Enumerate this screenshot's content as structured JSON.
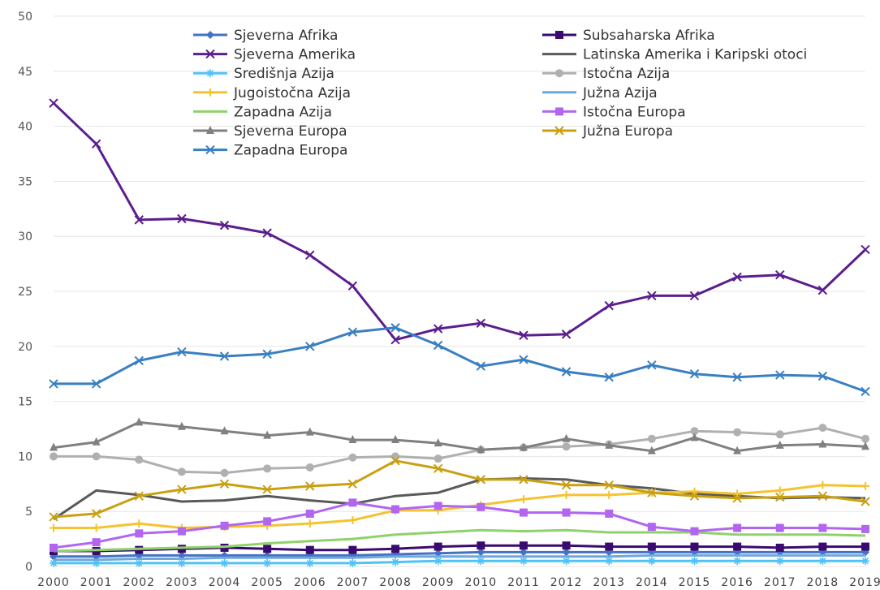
{
  "chart_data": {
    "type": "line",
    "title": "",
    "xlabel": "",
    "ylabel": "",
    "ylim": [
      0,
      50
    ],
    "yticks": [
      "0",
      "5",
      "10",
      "15",
      "20",
      "25",
      "30",
      "35",
      "40",
      "45",
      "50"
    ],
    "x": [
      "2000",
      "2001",
      "2002",
      "2003",
      "2004",
      "2005",
      "2006",
      "2007",
      "2008",
      "2009",
      "2010",
      "2011",
      "2012",
      "2013",
      "2014",
      "2015",
      "2016",
      "2017",
      "2018",
      "2019"
    ],
    "grid": "horizontal",
    "legend_position": "top",
    "series": [
      {
        "name": "Sjeverna Afrika",
        "color": "#4472C4",
        "marker": "diamond",
        "values": [
          0.9,
          0.9,
          1.0,
          1.0,
          1.0,
          1.0,
          1.0,
          1.0,
          1.1,
          1.2,
          1.3,
          1.3,
          1.3,
          1.3,
          1.3,
          1.3,
          1.3,
          1.3,
          1.3,
          1.3
        ]
      },
      {
        "name": "Subsaharska Afrika",
        "color": "#3A0A6E",
        "marker": "square",
        "values": [
          1.4,
          1.4,
          1.5,
          1.6,
          1.7,
          1.6,
          1.5,
          1.5,
          1.6,
          1.8,
          1.9,
          1.9,
          1.9,
          1.8,
          1.8,
          1.8,
          1.8,
          1.7,
          1.8,
          1.8
        ]
      },
      {
        "name": "Sjeverna Amerika",
        "color": "#5B1E8E",
        "marker": "cross",
        "values": [
          42.1,
          38.4,
          31.5,
          31.6,
          31.0,
          30.3,
          28.3,
          25.5,
          20.6,
          21.6,
          22.1,
          21.0,
          21.1,
          23.7,
          24.6,
          24.6,
          26.3,
          26.5,
          25.1,
          28.8
        ]
      },
      {
        "name": "Latinska Amerika i Karipski otoci",
        "color": "#595959",
        "marker": "none",
        "values": [
          4.3,
          6.9,
          6.5,
          5.9,
          6.0,
          6.4,
          6.0,
          5.7,
          6.4,
          6.7,
          7.9,
          8.0,
          7.9,
          7.4,
          7.1,
          6.6,
          6.4,
          6.2,
          6.3,
          6.2
        ]
      },
      {
        "name": "Središnja Azija",
        "color": "#4FC3F7",
        "marker": "star",
        "values": [
          0.3,
          0.3,
          0.3,
          0.3,
          0.3,
          0.3,
          0.3,
          0.3,
          0.4,
          0.5,
          0.5,
          0.5,
          0.5,
          0.5,
          0.5,
          0.5,
          0.5,
          0.5,
          0.5,
          0.5
        ]
      },
      {
        "name": "Istočna Azija",
        "color": "#B0B0B0",
        "marker": "circle",
        "values": [
          10.0,
          10.0,
          9.7,
          8.6,
          8.5,
          8.9,
          9.0,
          9.9,
          10.0,
          9.8,
          10.6,
          10.8,
          10.9,
          11.1,
          11.6,
          12.3,
          12.2,
          12.0,
          12.6,
          11.6
        ]
      },
      {
        "name": "Jugoistočna Azija",
        "color": "#F5C230",
        "marker": "plus",
        "values": [
          3.5,
          3.5,
          3.9,
          3.5,
          3.6,
          3.7,
          3.9,
          4.2,
          5.1,
          5.1,
          5.6,
          6.1,
          6.5,
          6.5,
          6.7,
          6.8,
          6.6,
          6.9,
          7.4,
          7.3
        ]
      },
      {
        "name": "Južna Azija",
        "color": "#6FA8DC",
        "marker": "none",
        "values": [
          0.6,
          0.6,
          0.7,
          0.7,
          0.8,
          0.8,
          0.8,
          0.8,
          0.9,
          0.9,
          0.9,
          0.9,
          0.9,
          0.9,
          1.0,
          1.0,
          1.0,
          1.0,
          1.0,
          1.0
        ]
      },
      {
        "name": "Zapadna Azija",
        "color": "#8FD16B",
        "marker": "none",
        "values": [
          1.4,
          1.5,
          1.6,
          1.7,
          1.8,
          2.1,
          2.3,
          2.5,
          2.9,
          3.1,
          3.3,
          3.2,
          3.3,
          3.1,
          3.1,
          3.1,
          2.9,
          2.9,
          2.9,
          2.8
        ]
      },
      {
        "name": "Istočna Europa",
        "color": "#B266F0",
        "marker": "square",
        "values": [
          1.7,
          2.2,
          3.0,
          3.2,
          3.7,
          4.1,
          4.8,
          5.8,
          5.2,
          5.5,
          5.4,
          4.9,
          4.9,
          4.8,
          3.6,
          3.2,
          3.5,
          3.5,
          3.5,
          3.4
        ]
      },
      {
        "name": "Sjeverna Europa",
        "color": "#808080",
        "marker": "triangle",
        "values": [
          10.8,
          11.3,
          13.1,
          12.7,
          12.3,
          11.9,
          12.2,
          11.5,
          11.5,
          11.2,
          10.6,
          10.8,
          11.6,
          11.0,
          10.5,
          11.7,
          10.5,
          11.0,
          11.1,
          10.9
        ]
      },
      {
        "name": "Južna Europa",
        "color": "#C9A012",
        "marker": "cross",
        "values": [
          4.5,
          4.8,
          6.4,
          7.0,
          7.5,
          7.0,
          7.3,
          7.5,
          9.6,
          8.9,
          7.9,
          7.9,
          7.4,
          7.4,
          6.7,
          6.4,
          6.2,
          6.3,
          6.4,
          5.9
        ]
      },
      {
        "name": "Zapadna Europa",
        "color": "#3A7FC1",
        "marker": "cross",
        "values": [
          16.6,
          16.6,
          18.7,
          19.5,
          19.1,
          19.3,
          20.0,
          21.3,
          21.7,
          20.1,
          18.2,
          18.8,
          17.7,
          17.2,
          18.3,
          17.5,
          17.2,
          17.4,
          17.3,
          15.9
        ]
      }
    ]
  }
}
